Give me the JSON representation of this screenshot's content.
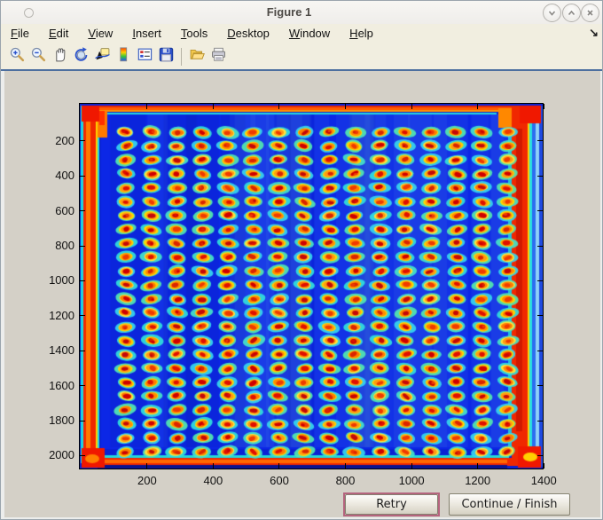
{
  "window": {
    "title": "Figure 1",
    "controls": [
      {
        "name": "minimize",
        "icon": "chevron-down-icon"
      },
      {
        "name": "maximize",
        "icon": "chevron-up-icon"
      },
      {
        "name": "close",
        "icon": "close-icon"
      }
    ]
  },
  "menu_bar": {
    "items": [
      {
        "mnemonic": "F",
        "rest": "ile"
      },
      {
        "mnemonic": "E",
        "rest": "dit"
      },
      {
        "mnemonic": "V",
        "rest": "iew"
      },
      {
        "mnemonic": "I",
        "rest": "nsert"
      },
      {
        "mnemonic": "T",
        "rest": "ools"
      },
      {
        "mnemonic": "D",
        "rest": "esktop"
      },
      {
        "mnemonic": "W",
        "rest": "indow"
      },
      {
        "mnemonic": "H",
        "rest": "elp"
      }
    ],
    "dock_glyph": "↘"
  },
  "toolbar": {
    "groups": [
      [
        "zoom-in",
        "zoom-out",
        "pan",
        "rotate-3d",
        "data-cursor",
        "insert-colorbar",
        "insert-legend",
        "save-figure"
      ],
      [
        "open-file",
        "print-figure"
      ]
    ]
  },
  "buttons": {
    "retry": {
      "label": "Retry",
      "focused": true
    },
    "continue": {
      "label": "Continue / Finish",
      "focused": false
    }
  },
  "chart_data": {
    "type": "heatmap",
    "title": "",
    "xlabel": "",
    "ylabel": "",
    "description": "Microarray plate scan displayed with jet colormap: 16 x 24 grid of hybridization spots (red cores, orange/yellow rings, cyan halos) on a blue background, with saturated red bands along all four plate edges",
    "colormap": "jet",
    "x_ticks": [
      200,
      400,
      600,
      800,
      1000,
      1200,
      1400
    ],
    "y_ticks": [
      200,
      400,
      600,
      800,
      1000,
      1200,
      1400,
      1600,
      1800,
      2000
    ],
    "x_view": [
      -6,
      1397
    ],
    "y_view": [
      -18,
      2079
    ],
    "grid": {
      "columns": 16,
      "rows": 24,
      "first_spot_xy": [
        136,
        149
      ],
      "spacing_xy": [
        77,
        79.5
      ]
    },
    "colors": {
      "background": "#0a22d4",
      "background_inner": "#0c27e6",
      "border_band": "#f02800",
      "border_band_core": "#ff7a00",
      "border_fringe": "#25d8e0",
      "spot_cores": [
        "#cf0000",
        "#e01000",
        "#da2500",
        "#c40808",
        "#ef3a00"
      ],
      "spot_rings": [
        "#ff8c00",
        "#ff7a00",
        "#ff9a12"
      ],
      "spot_outers": [
        "#ffd800",
        "#ffe23c",
        "#ffcf00"
      ],
      "spot_halos": [
        "#31e0dc",
        "#45e4c8",
        "#36d6ee",
        "#52e8b0"
      ]
    }
  }
}
